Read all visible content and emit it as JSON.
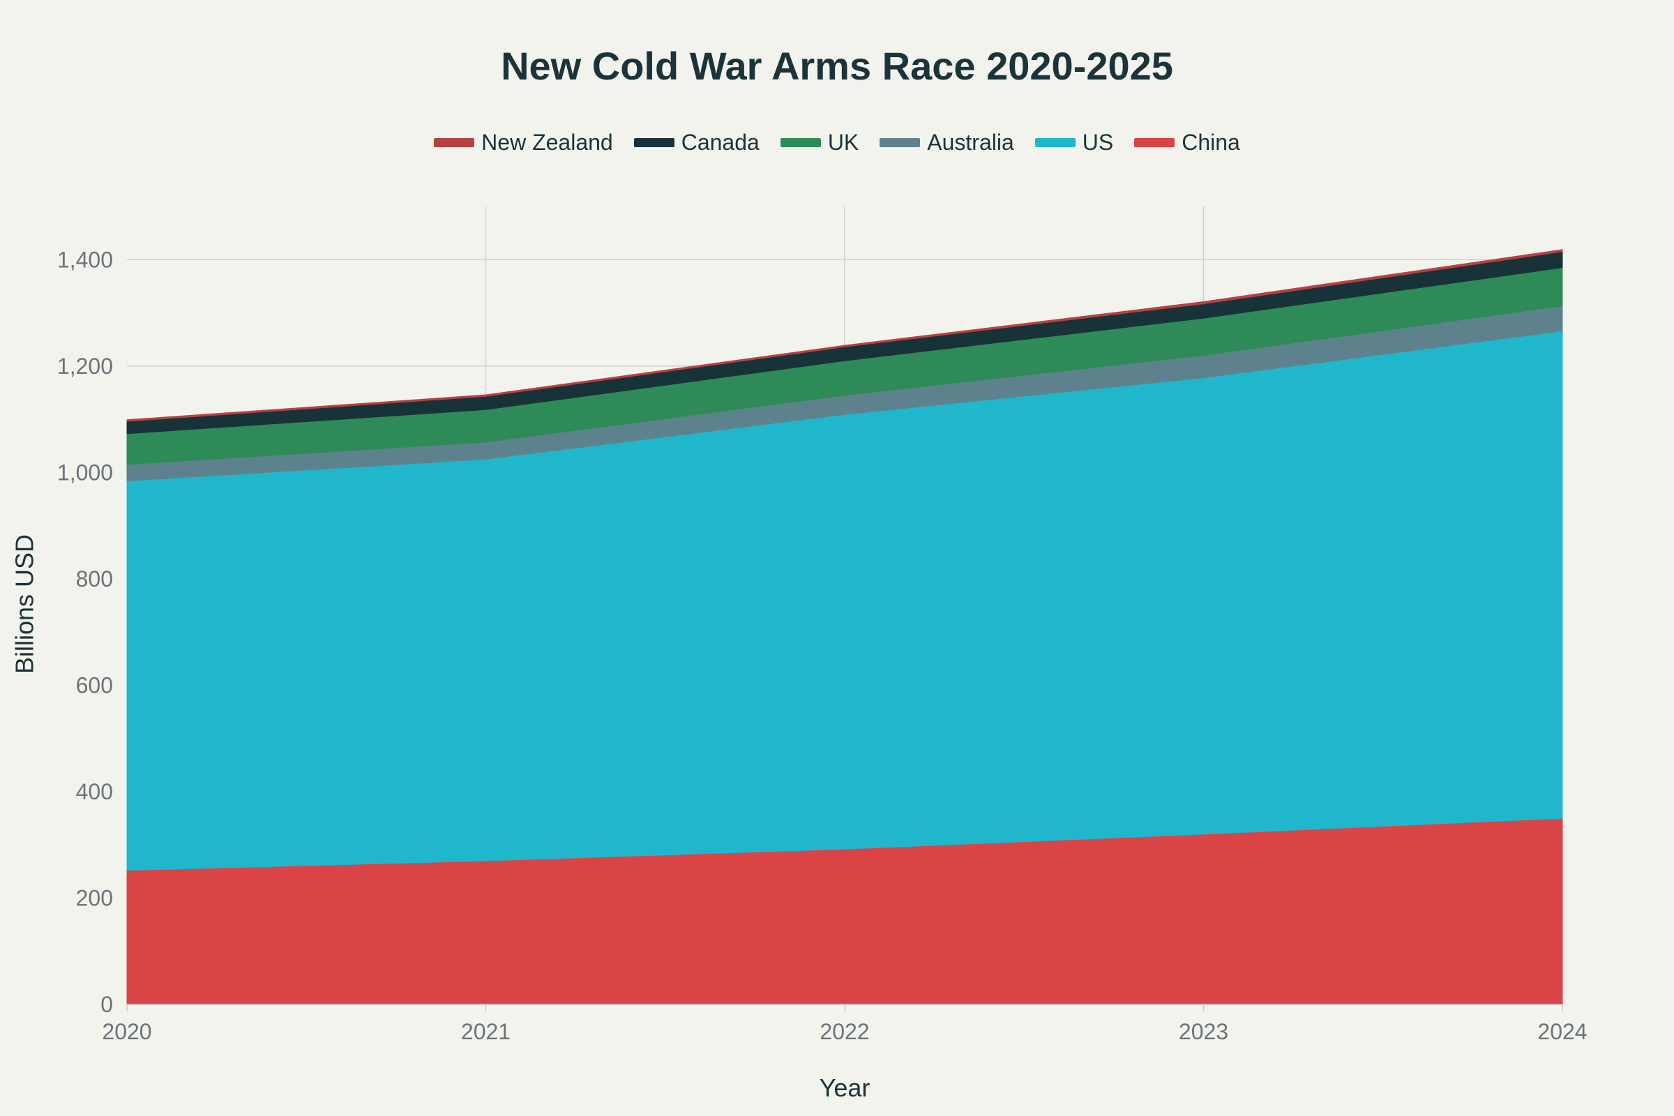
{
  "chart_data": {
    "type": "area",
    "stacked": true,
    "title": "New Cold War Arms Race 2020-2025",
    "xlabel": "Year",
    "ylabel": "Billions USD",
    "x": [
      2020,
      2021,
      2022,
      2023,
      2024
    ],
    "xticks": [
      "2020",
      "2021",
      "2022",
      "2023",
      "2024"
    ],
    "ylim": [
      0,
      1500
    ],
    "yticks": [
      0,
      200,
      400,
      600,
      800,
      1000,
      1200,
      1400
    ],
    "ytick_labels": [
      "0",
      "200",
      "400",
      "600",
      "800",
      "1,000",
      "1,200",
      "1,400"
    ],
    "grid": true,
    "legend_position": "top-center",
    "series": [
      {
        "name": "China",
        "color": "#db4446",
        "values": [
          252,
          270,
          292,
          320,
          350
        ]
      },
      {
        "name": "US",
        "color": "#20b7cd",
        "values": [
          732,
          755,
          817,
          858,
          916
        ]
      },
      {
        "name": "Australia",
        "color": "#5e828d",
        "values": [
          31,
          32,
          36,
          42,
          47
        ]
      },
      {
        "name": "UK",
        "color": "#2e8b58",
        "values": [
          58,
          61,
          65,
          70,
          72
        ]
      },
      {
        "name": "Canada",
        "color": "#173239",
        "values": [
          23,
          25,
          26,
          27,
          30
        ]
      },
      {
        "name": "New Zealand",
        "color": "#b64142",
        "values": [
          3,
          3,
          3,
          4,
          4
        ]
      }
    ],
    "legend_order": [
      "New Zealand",
      "Canada",
      "UK",
      "Australia",
      "US",
      "China"
    ]
  }
}
